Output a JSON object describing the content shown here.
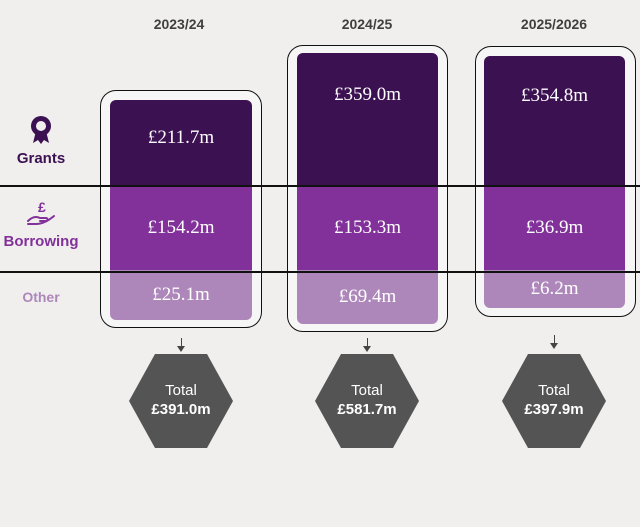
{
  "chart_data": {
    "type": "bar",
    "stacked": true,
    "categories": [
      "2023/24",
      "2024/25",
      "2025/2026"
    ],
    "series": [
      {
        "name": "Grants",
        "values": [
          211.7,
          359.0,
          354.8
        ],
        "labels": [
          "£211.7m",
          "£359.0m",
          "£354.8m"
        ],
        "color": "#3c1152"
      },
      {
        "name": "Borrowing",
        "values": [
          154.2,
          153.3,
          36.9
        ],
        "labels": [
          "£154.2m",
          "£153.3m",
          "£36.9m"
        ],
        "color": "#82319a"
      },
      {
        "name": "Other",
        "values": [
          25.1,
          69.4,
          6.2
        ],
        "labels": [
          "£25.1m",
          "£69.4m",
          "£6.2m"
        ],
        "color": "#ae87ba"
      }
    ],
    "totals": {
      "label": "Total",
      "values": [
        391.0,
        581.7,
        397.9
      ],
      "labels": [
        "£391.0m",
        "£581.7m",
        "£397.9m"
      ]
    },
    "row_labels": {
      "grants": "Grants",
      "borrowing": "Borrowing",
      "other": "Other"
    },
    "icons": {
      "grants": "award-ribbon-icon",
      "borrowing": "hand-pound-icon"
    },
    "colors": {
      "grants_label": "#3c1152",
      "borrowing_label": "#82319a",
      "other_label": "#ae87ba",
      "total_hex": "#545454"
    }
  }
}
